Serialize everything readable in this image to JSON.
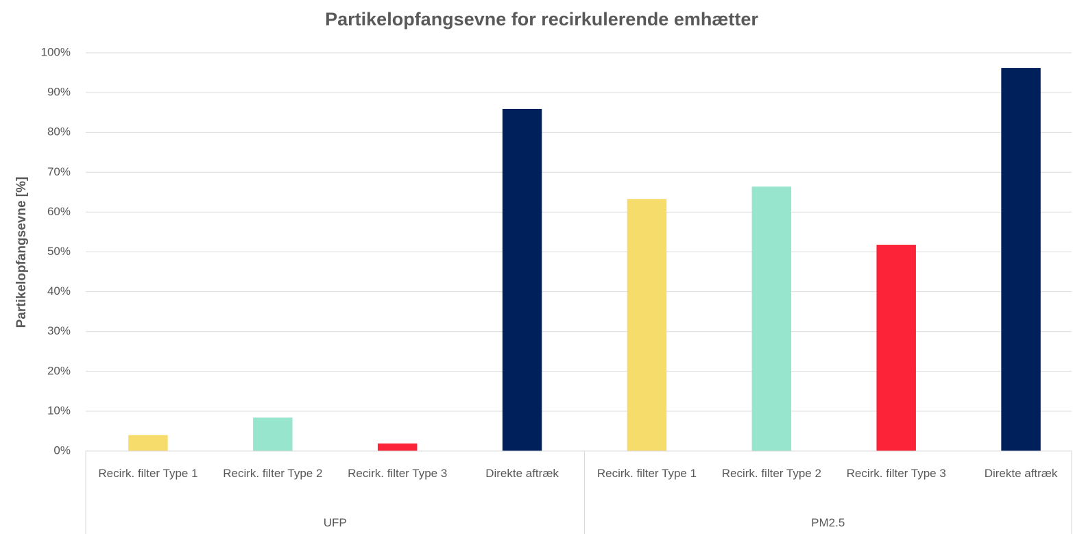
{
  "chart_data": {
    "type": "bar",
    "title": "Partikelopfangsevne for recirkulerende emhætter",
    "y_label": "Partikelopfangsevne [%]",
    "colors": [
      "#f6dc6b",
      "#98e5cd",
      "#fc2339",
      "#00205b"
    ],
    "groups": [
      {
        "name": "UFP",
        "categories": [
          "Recirk. filter Type 1",
          "Recirk. filter Type 2",
          "Recirk. filter Type 3",
          "Direkte aftræk"
        ],
        "values": [
          4,
          8.4,
          1.9,
          85.9
        ]
      },
      {
        "name": "PM2.5",
        "categories": [
          "Recirk. filter Type 1",
          "Recirk. filter Type 2",
          "Recirk. filter Type 3",
          "Direkte aftræk"
        ],
        "values": [
          63.3,
          66.4,
          51.8,
          96.2
        ]
      }
    ],
    "ylim": [
      0,
      100
    ],
    "yticks": [
      {
        "value": 0,
        "label": "0%"
      },
      {
        "value": 10,
        "label": "10%"
      },
      {
        "value": 20,
        "label": "20%"
      },
      {
        "value": 30,
        "label": "30%"
      },
      {
        "value": 40,
        "label": "40%"
      },
      {
        "value": 50,
        "label": "50%"
      },
      {
        "value": 60,
        "label": "60%"
      },
      {
        "value": 70,
        "label": "70%"
      },
      {
        "value": 80,
        "label": "80%"
      },
      {
        "value": 90,
        "label": "90%"
      },
      {
        "value": 100,
        "label": "100%"
      }
    ],
    "grid": true
  }
}
